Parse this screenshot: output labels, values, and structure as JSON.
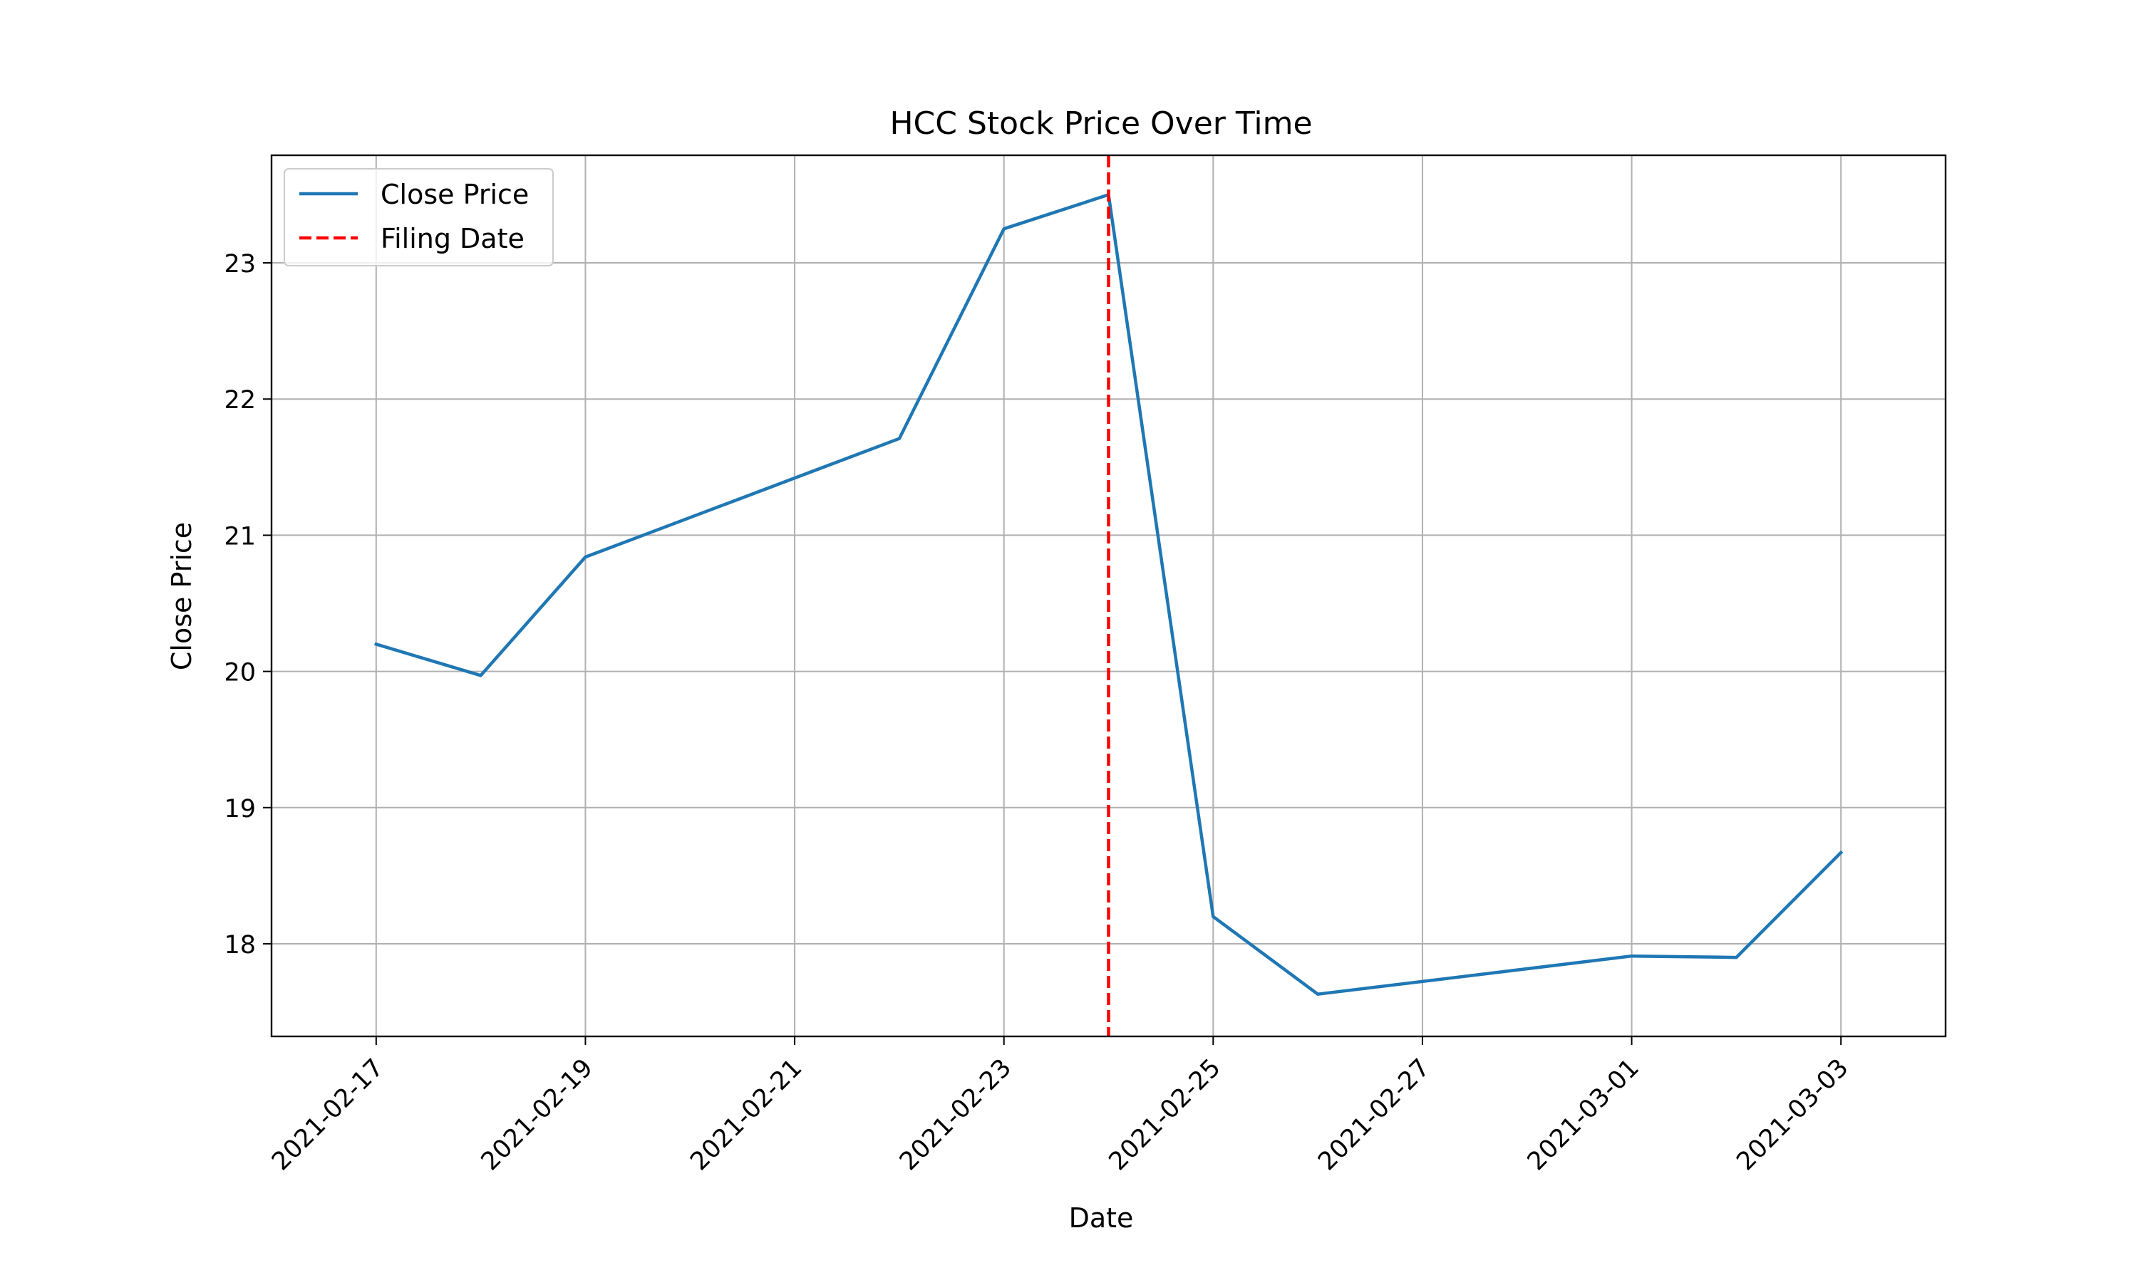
{
  "chart_data": {
    "type": "line",
    "title": "HCC Stock Price Over Time",
    "xlabel": "Date",
    "ylabel": "Close Price",
    "grid": true,
    "legend_position": "top-left",
    "xlim": [
      "2021-02-16",
      "2021-03-04"
    ],
    "ylim": [
      17.32,
      23.79
    ],
    "x_ticks": [
      "2021-02-17",
      "2021-02-19",
      "2021-02-21",
      "2021-02-23",
      "2021-02-25",
      "2021-02-27",
      "2021-03-01",
      "2021-03-03"
    ],
    "y_ticks": [
      18,
      19,
      20,
      21,
      22,
      23
    ],
    "series": [
      {
        "name": "Close Price",
        "color": "#1f77b4",
        "style": "solid",
        "x": [
          "2021-02-17",
          "2021-02-18",
          "2021-02-19",
          "2021-02-22",
          "2021-02-23",
          "2021-02-24",
          "2021-02-25",
          "2021-02-26",
          "2021-03-01",
          "2021-03-02",
          "2021-03-03"
        ],
        "y": [
          20.2,
          19.97,
          20.84,
          21.71,
          23.25,
          23.5,
          18.2,
          17.63,
          17.91,
          17.9,
          18.67
        ]
      }
    ],
    "annotations": [
      {
        "type": "vline",
        "name": "Filing Date",
        "x": "2021-02-24",
        "color": "#ff0000",
        "style": "dashed"
      }
    ]
  }
}
